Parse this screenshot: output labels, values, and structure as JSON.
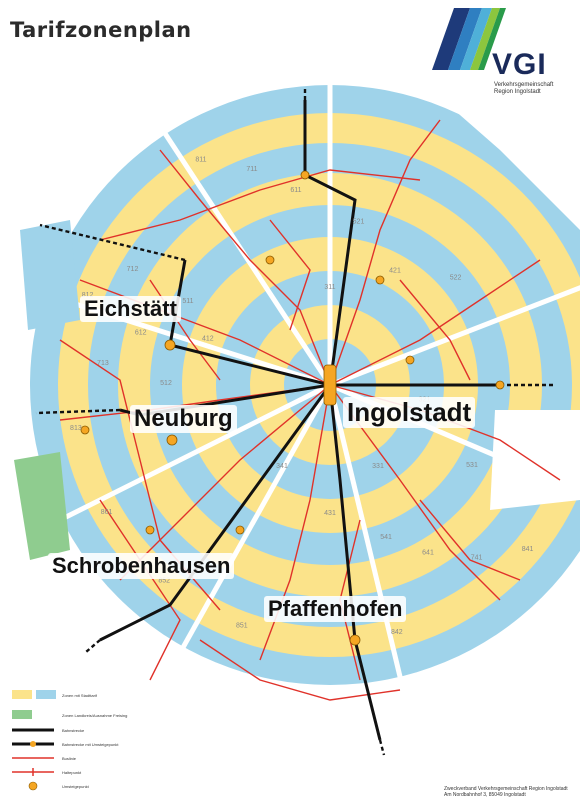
{
  "title": "Tarifzonenplan",
  "logo": {
    "wordmark": "VGI",
    "subtitle": "Verkehrsgemeinschaft Region Ingolstadt",
    "colors": [
      "#1e3a7a",
      "#2f7fc1",
      "#4fb0d8",
      "#8cc63e",
      "#2a9b4a"
    ]
  },
  "colors": {
    "zone_yellow": "#fbe38a",
    "zone_blue": "#9fd3ea",
    "zone_green": "#8fcc8f",
    "rail": "#111111",
    "bus": "#e0322a",
    "hub": "#f5a623"
  },
  "cities": [
    {
      "name": "Eichstätt"
    },
    {
      "name": "Ingolstadt"
    },
    {
      "name": "Neuburg"
    },
    {
      "name": "Schrobenhausen"
    },
    {
      "name": "Pfaffenhofen"
    }
  ],
  "zones": [
    "811",
    "812",
    "813",
    "711",
    "712",
    "713",
    "611",
    "612",
    "521",
    "522",
    "421",
    "511",
    "512",
    "412",
    "311",
    "321",
    "331",
    "341",
    "431",
    "531",
    "541",
    "641",
    "741",
    "841",
    "842",
    "851",
    "852",
    "861"
  ],
  "legend": {
    "items": [
      {
        "label": "Zonen mit Stadttarif"
      },
      {
        "label": "Zonen Landkreis/Ausnahme Freising"
      },
      {
        "label": "Bahnstrecke"
      },
      {
        "label": "Bahnstrecke mit Umsteigepunkt"
      },
      {
        "label": "Buslinie"
      },
      {
        "label": "Haltepunkt"
      },
      {
        "label": "Umsteigepunkt"
      }
    ]
  },
  "footer": {
    "line1": "Zweckverband Verkehrsgemeinschaft Region Ingolstadt",
    "line2": "Am Nordbahnhof 3, 85049 Ingolstadt"
  }
}
